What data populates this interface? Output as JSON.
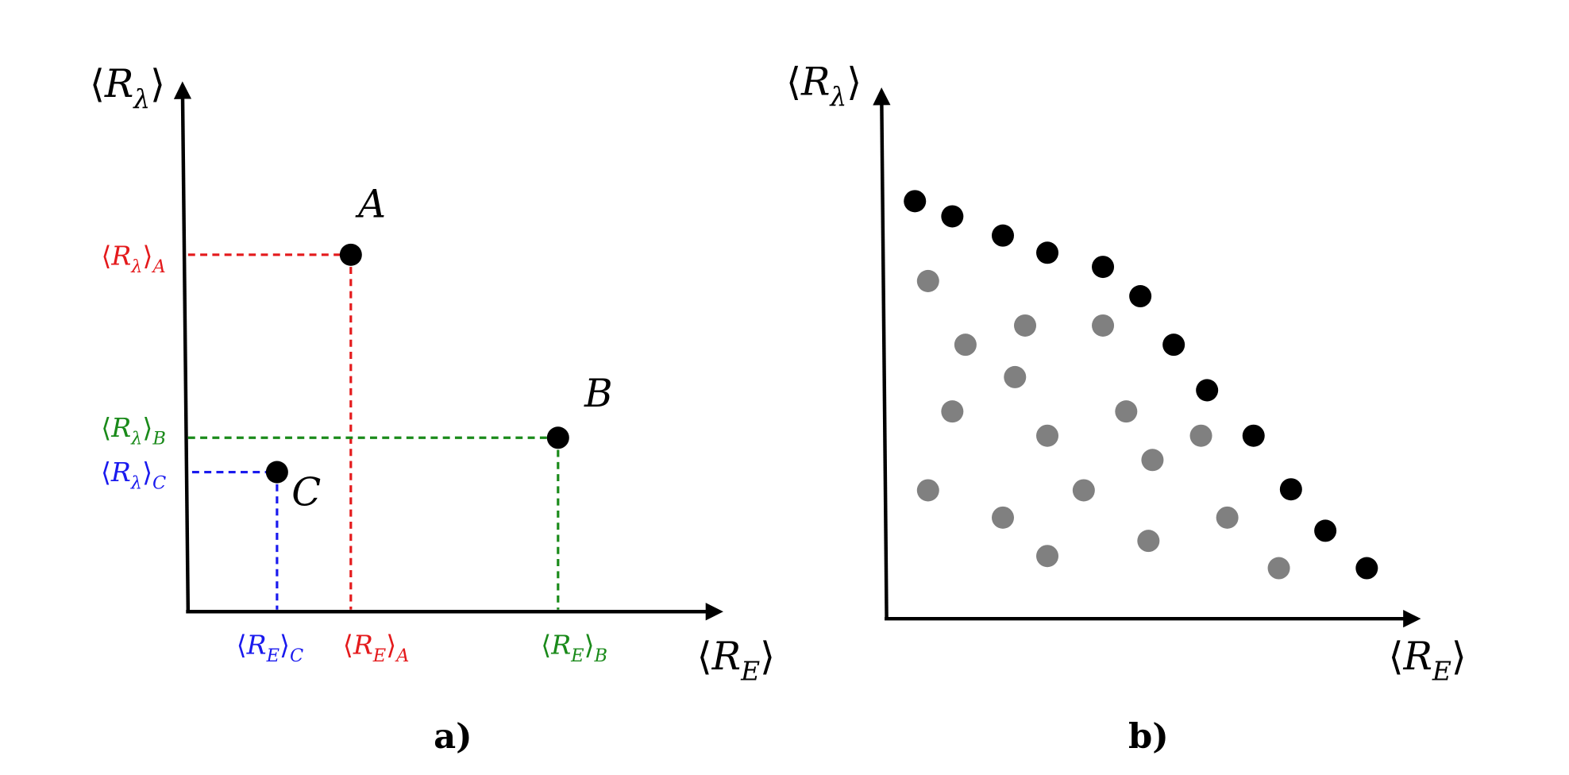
{
  "brackets": {
    "open": "⟨",
    "close": "⟩"
  },
  "panel_a": {
    "y_axis_label": {
      "var": "R",
      "sub": "λ"
    },
    "x_axis_label": {
      "var": "R",
      "sub": "E"
    },
    "points": [
      {
        "name": "A",
        "y_label": {
          "var": "R",
          "sub": "λ",
          "index": "A"
        },
        "x_label": {
          "var": "R",
          "sub": "E",
          "index": "A"
        }
      },
      {
        "name": "B",
        "y_label": {
          "var": "R",
          "sub": "λ",
          "index": "B"
        },
        "x_label": {
          "var": "R",
          "sub": "E",
          "index": "B"
        }
      },
      {
        "name": "C",
        "y_label": {
          "var": "R",
          "sub": "λ",
          "index": "C"
        },
        "x_label": {
          "var": "R",
          "sub": "E",
          "index": "C"
        }
      }
    ],
    "caption": "a)"
  },
  "panel_b": {
    "y_axis_label": {
      "var": "R",
      "sub": "λ"
    },
    "x_axis_label": {
      "var": "R",
      "sub": "E"
    },
    "caption": "b)"
  }
}
